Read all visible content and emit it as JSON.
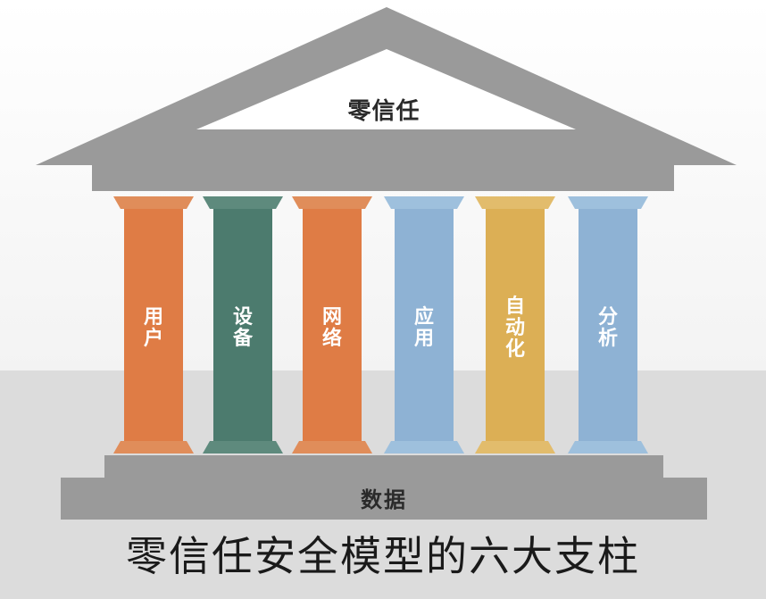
{
  "roof_label": "零信任",
  "pillars": [
    {
      "label": "用户",
      "color": "#df7c45",
      "cap_color": "#e08d5a"
    },
    {
      "label": "设备",
      "color": "#4c7b6e",
      "cap_color": "#5e8a7d"
    },
    {
      "label": "网络",
      "color": "#df7c45",
      "cap_color": "#e08d5a"
    },
    {
      "label": "应用",
      "color": "#8eb2d4",
      "cap_color": "#9ec0dd"
    },
    {
      "label": "自动化",
      "color": "#dcaf55",
      "cap_color": "#e2bc6c"
    },
    {
      "label": "分析",
      "color": "#8eb2d4",
      "cap_color": "#9ec0dd"
    }
  ],
  "base_label": "数据",
  "caption": "零信任安全模型的六大支柱",
  "colors": {
    "structure": "#9a9a9a",
    "roof_inner": "#ffffff"
  }
}
